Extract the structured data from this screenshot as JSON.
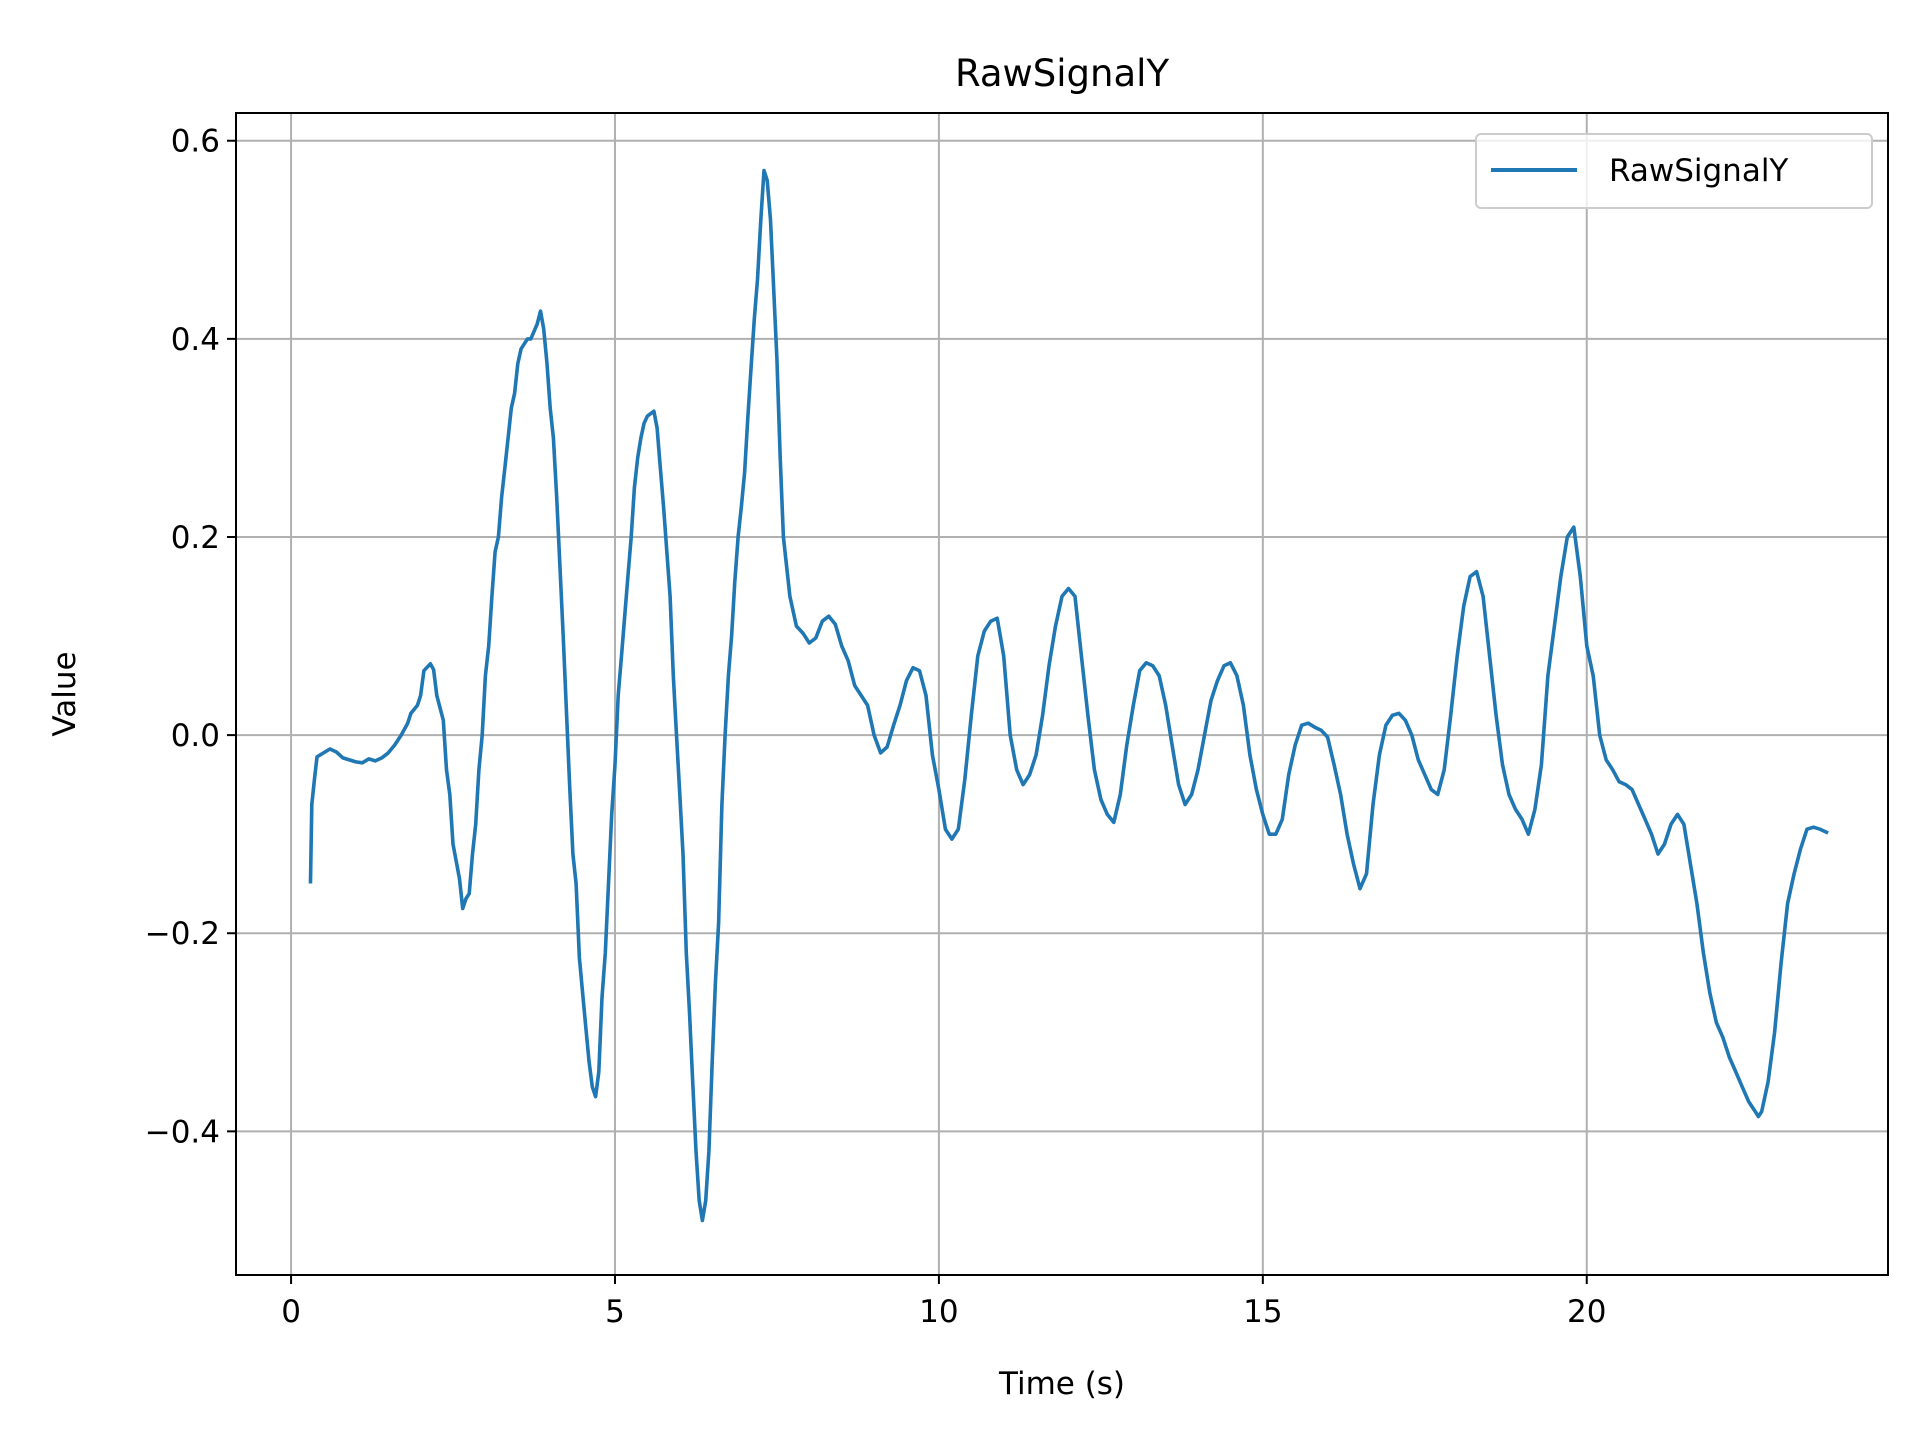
{
  "chart_data": {
    "type": "line",
    "title": "RawSignalY",
    "xlabel": "Time (s)",
    "ylabel": "Value",
    "xlim": [
      -0.85,
      24.65
    ],
    "ylim": [
      -0.545,
      0.628
    ],
    "xticks": [
      0,
      5,
      10,
      15,
      20
    ],
    "xtick_labels": [
      "0",
      "5",
      "10",
      "15",
      "20"
    ],
    "yticks": [
      -0.4,
      -0.2,
      0.0,
      0.2,
      0.4,
      0.6
    ],
    "ytick_labels": [
      "−0.4",
      "−0.2",
      "0.0",
      "0.2",
      "0.4",
      "0.6"
    ],
    "grid": true,
    "legend": {
      "position": "upper right",
      "entries": [
        "RawSignalY"
      ]
    },
    "series": [
      {
        "name": "RawSignalY",
        "color": "#1f77b4",
        "points": [
          [
            0.3,
            -0.148
          ],
          [
            0.32,
            -0.07
          ],
          [
            0.36,
            -0.045
          ],
          [
            0.4,
            -0.022
          ],
          [
            0.5,
            -0.018
          ],
          [
            0.6,
            -0.014
          ],
          [
            0.7,
            -0.017
          ],
          [
            0.8,
            -0.023
          ],
          [
            1.0,
            -0.027
          ],
          [
            1.1,
            -0.028
          ],
          [
            1.2,
            -0.024
          ],
          [
            1.3,
            -0.026
          ],
          [
            1.4,
            -0.023
          ],
          [
            1.5,
            -0.018
          ],
          [
            1.6,
            -0.01
          ],
          [
            1.7,
            0.0
          ],
          [
            1.8,
            0.012
          ],
          [
            1.85,
            0.022
          ],
          [
            1.95,
            0.03
          ],
          [
            2.0,
            0.04
          ],
          [
            2.05,
            0.065
          ],
          [
            2.15,
            0.072
          ],
          [
            2.2,
            0.066
          ],
          [
            2.25,
            0.04
          ],
          [
            2.35,
            0.015
          ],
          [
            2.4,
            -0.035
          ],
          [
            2.45,
            -0.06
          ],
          [
            2.5,
            -0.11
          ],
          [
            2.6,
            -0.145
          ],
          [
            2.65,
            -0.175
          ],
          [
            2.7,
            -0.165
          ],
          [
            2.75,
            -0.16
          ],
          [
            2.8,
            -0.12
          ],
          [
            2.85,
            -0.09
          ],
          [
            2.9,
            -0.035
          ],
          [
            2.95,
            0.0
          ],
          [
            3.0,
            0.06
          ],
          [
            3.05,
            0.09
          ],
          [
            3.1,
            0.14
          ],
          [
            3.15,
            0.185
          ],
          [
            3.2,
            0.2
          ],
          [
            3.25,
            0.24
          ],
          [
            3.3,
            0.27
          ],
          [
            3.35,
            0.3
          ],
          [
            3.4,
            0.33
          ],
          [
            3.45,
            0.345
          ],
          [
            3.5,
            0.375
          ],
          [
            3.55,
            0.39
          ],
          [
            3.6,
            0.395
          ],
          [
            3.65,
            0.4
          ],
          [
            3.7,
            0.4
          ],
          [
            3.8,
            0.415
          ],
          [
            3.85,
            0.428
          ],
          [
            3.9,
            0.41
          ],
          [
            3.95,
            0.375
          ],
          [
            4.0,
            0.33
          ],
          [
            4.05,
            0.3
          ],
          [
            4.1,
            0.24
          ],
          [
            4.2,
            0.1
          ],
          [
            4.3,
            -0.05
          ],
          [
            4.35,
            -0.12
          ],
          [
            4.4,
            -0.15
          ],
          [
            4.45,
            -0.225
          ],
          [
            4.5,
            -0.26
          ],
          [
            4.55,
            -0.295
          ],
          [
            4.6,
            -0.33
          ],
          [
            4.65,
            -0.355
          ],
          [
            4.7,
            -0.365
          ],
          [
            4.75,
            -0.34
          ],
          [
            4.8,
            -0.265
          ],
          [
            4.85,
            -0.22
          ],
          [
            4.9,
            -0.15
          ],
          [
            4.95,
            -0.08
          ],
          [
            5.0,
            -0.03
          ],
          [
            5.05,
            0.04
          ],
          [
            5.1,
            0.08
          ],
          [
            5.15,
            0.12
          ],
          [
            5.2,
            0.16
          ],
          [
            5.25,
            0.2
          ],
          [
            5.3,
            0.25
          ],
          [
            5.35,
            0.28
          ],
          [
            5.4,
            0.3
          ],
          [
            5.45,
            0.315
          ],
          [
            5.5,
            0.322
          ],
          [
            5.6,
            0.327
          ],
          [
            5.65,
            0.31
          ],
          [
            5.7,
            0.27
          ],
          [
            5.75,
            0.23
          ],
          [
            5.85,
            0.14
          ],
          [
            5.9,
            0.06
          ],
          [
            5.95,
            0.0
          ],
          [
            6.0,
            -0.06
          ],
          [
            6.05,
            -0.12
          ],
          [
            6.1,
            -0.22
          ],
          [
            6.15,
            -0.28
          ],
          [
            6.2,
            -0.35
          ],
          [
            6.25,
            -0.42
          ],
          [
            6.3,
            -0.47
          ],
          [
            6.35,
            -0.49
          ],
          [
            6.4,
            -0.47
          ],
          [
            6.45,
            -0.42
          ],
          [
            6.5,
            -0.33
          ],
          [
            6.55,
            -0.25
          ],
          [
            6.6,
            -0.19
          ],
          [
            6.65,
            -0.07
          ],
          [
            6.7,
            0.0
          ],
          [
            6.75,
            0.06
          ],
          [
            6.8,
            0.1
          ],
          [
            6.85,
            0.155
          ],
          [
            6.9,
            0.2
          ],
          [
            6.95,
            0.23
          ],
          [
            7.0,
            0.265
          ],
          [
            7.05,
            0.32
          ],
          [
            7.1,
            0.37
          ],
          [
            7.15,
            0.42
          ],
          [
            7.2,
            0.46
          ],
          [
            7.25,
            0.52
          ],
          [
            7.3,
            0.57
          ],
          [
            7.35,
            0.56
          ],
          [
            7.4,
            0.52
          ],
          [
            7.45,
            0.45
          ],
          [
            7.5,
            0.38
          ],
          [
            7.55,
            0.28
          ],
          [
            7.6,
            0.2
          ],
          [
            7.7,
            0.14
          ],
          [
            7.8,
            0.11
          ],
          [
            7.9,
            0.103
          ],
          [
            8.0,
            0.093
          ],
          [
            8.1,
            0.098
          ],
          [
            8.2,
            0.115
          ],
          [
            8.3,
            0.12
          ],
          [
            8.4,
            0.112
          ],
          [
            8.5,
            0.09
          ],
          [
            8.6,
            0.075
          ],
          [
            8.7,
            0.05
          ],
          [
            8.8,
            0.04
          ],
          [
            8.9,
            0.03
          ],
          [
            9.0,
            0.0
          ],
          [
            9.1,
            -0.018
          ],
          [
            9.2,
            -0.012
          ],
          [
            9.3,
            0.01
          ],
          [
            9.4,
            0.03
          ],
          [
            9.5,
            0.055
          ],
          [
            9.6,
            0.068
          ],
          [
            9.7,
            0.065
          ],
          [
            9.8,
            0.04
          ],
          [
            9.9,
            -0.02
          ],
          [
            10.0,
            -0.055
          ],
          [
            10.1,
            -0.095
          ],
          [
            10.2,
            -0.105
          ],
          [
            10.3,
            -0.095
          ],
          [
            10.4,
            -0.045
          ],
          [
            10.5,
            0.02
          ],
          [
            10.6,
            0.08
          ],
          [
            10.7,
            0.105
          ],
          [
            10.8,
            0.115
          ],
          [
            10.9,
            0.118
          ],
          [
            11.0,
            0.08
          ],
          [
            11.1,
            0.0
          ],
          [
            11.2,
            -0.035
          ],
          [
            11.3,
            -0.05
          ],
          [
            11.4,
            -0.04
          ],
          [
            11.5,
            -0.02
          ],
          [
            11.6,
            0.02
          ],
          [
            11.7,
            0.07
          ],
          [
            11.8,
            0.11
          ],
          [
            11.9,
            0.14
          ],
          [
            12.0,
            0.148
          ],
          [
            12.1,
            0.14
          ],
          [
            12.2,
            0.08
          ],
          [
            12.3,
            0.02
          ],
          [
            12.4,
            -0.035
          ],
          [
            12.5,
            -0.065
          ],
          [
            12.6,
            -0.08
          ],
          [
            12.7,
            -0.088
          ],
          [
            12.8,
            -0.06
          ],
          [
            12.9,
            -0.01
          ],
          [
            13.0,
            0.03
          ],
          [
            13.1,
            0.065
          ],
          [
            13.2,
            0.073
          ],
          [
            13.3,
            0.07
          ],
          [
            13.4,
            0.06
          ],
          [
            13.5,
            0.03
          ],
          [
            13.6,
            -0.01
          ],
          [
            13.7,
            -0.05
          ],
          [
            13.8,
            -0.07
          ],
          [
            13.9,
            -0.06
          ],
          [
            14.0,
            -0.035
          ],
          [
            14.1,
            0.0
          ],
          [
            14.2,
            0.035
          ],
          [
            14.3,
            0.055
          ],
          [
            14.4,
            0.07
          ],
          [
            14.5,
            0.073
          ],
          [
            14.6,
            0.06
          ],
          [
            14.7,
            0.03
          ],
          [
            14.8,
            -0.02
          ],
          [
            14.9,
            -0.055
          ],
          [
            15.0,
            -0.08
          ],
          [
            15.1,
            -0.1
          ],
          [
            15.2,
            -0.1
          ],
          [
            15.3,
            -0.085
          ],
          [
            15.4,
            -0.04
          ],
          [
            15.5,
            -0.01
          ],
          [
            15.6,
            0.01
          ],
          [
            15.7,
            0.012
          ],
          [
            15.8,
            0.008
          ],
          [
            15.9,
            0.005
          ],
          [
            16.0,
            -0.002
          ],
          [
            16.1,
            -0.03
          ],
          [
            16.2,
            -0.06
          ],
          [
            16.3,
            -0.1
          ],
          [
            16.4,
            -0.13
          ],
          [
            16.5,
            -0.155
          ],
          [
            16.6,
            -0.14
          ],
          [
            16.7,
            -0.07
          ],
          [
            16.8,
            -0.02
          ],
          [
            16.9,
            0.01
          ],
          [
            17.0,
            0.02
          ],
          [
            17.1,
            0.022
          ],
          [
            17.2,
            0.015
          ],
          [
            17.3,
            0.0
          ],
          [
            17.4,
            -0.025
          ],
          [
            17.5,
            -0.04
          ],
          [
            17.6,
            -0.055
          ],
          [
            17.7,
            -0.06
          ],
          [
            17.8,
            -0.035
          ],
          [
            17.9,
            0.02
          ],
          [
            18.0,
            0.08
          ],
          [
            18.1,
            0.13
          ],
          [
            18.2,
            0.16
          ],
          [
            18.3,
            0.165
          ],
          [
            18.4,
            0.14
          ],
          [
            18.5,
            0.08
          ],
          [
            18.6,
            0.02
          ],
          [
            18.7,
            -0.03
          ],
          [
            18.8,
            -0.06
          ],
          [
            18.9,
            -0.075
          ],
          [
            19.0,
            -0.085
          ],
          [
            19.1,
            -0.1
          ],
          [
            19.2,
            -0.075
          ],
          [
            19.3,
            -0.03
          ],
          [
            19.4,
            0.06
          ],
          [
            19.5,
            0.11
          ],
          [
            19.6,
            0.16
          ],
          [
            19.7,
            0.2
          ],
          [
            19.8,
            0.21
          ],
          [
            19.9,
            0.16
          ],
          [
            20.0,
            0.09
          ],
          [
            20.1,
            0.06
          ],
          [
            20.2,
            0.0
          ],
          [
            20.3,
            -0.025
          ],
          [
            20.4,
            -0.035
          ],
          [
            20.5,
            -0.047
          ],
          [
            20.6,
            -0.05
          ],
          [
            20.7,
            -0.055
          ],
          [
            20.8,
            -0.07
          ],
          [
            20.9,
            -0.085
          ],
          [
            21.0,
            -0.1
          ],
          [
            21.1,
            -0.12
          ],
          [
            21.2,
            -0.11
          ],
          [
            21.3,
            -0.09
          ],
          [
            21.4,
            -0.08
          ],
          [
            21.5,
            -0.09
          ],
          [
            21.6,
            -0.13
          ],
          [
            21.7,
            -0.17
          ],
          [
            21.8,
            -0.22
          ],
          [
            21.9,
            -0.26
          ],
          [
            22.0,
            -0.29
          ],
          [
            22.1,
            -0.305
          ],
          [
            22.2,
            -0.325
          ],
          [
            22.3,
            -0.34
          ],
          [
            22.4,
            -0.355
          ],
          [
            22.5,
            -0.37
          ],
          [
            22.6,
            -0.38
          ],
          [
            22.65,
            -0.385
          ],
          [
            22.7,
            -0.38
          ],
          [
            22.8,
            -0.35
          ],
          [
            22.9,
            -0.3
          ],
          [
            23.0,
            -0.23
          ],
          [
            23.1,
            -0.17
          ],
          [
            23.2,
            -0.14
          ],
          [
            23.3,
            -0.115
          ],
          [
            23.4,
            -0.095
          ],
          [
            23.5,
            -0.093
          ],
          [
            23.6,
            -0.095
          ],
          [
            23.7,
            -0.098
          ]
        ]
      }
    ]
  }
}
